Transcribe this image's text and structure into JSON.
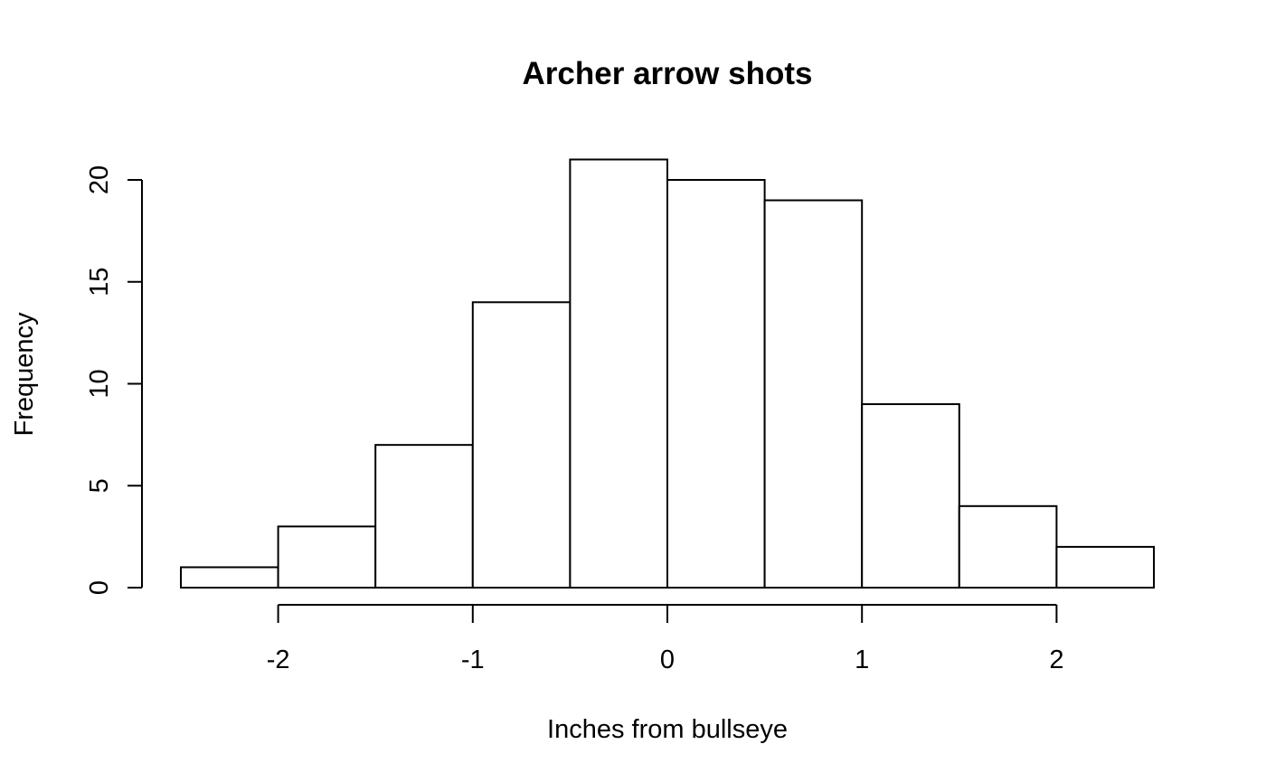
{
  "chart_data": {
    "type": "bar",
    "title": "Archer arrow shots",
    "xlabel": "Inches from bullseye",
    "ylabel": "Frequency",
    "bins": [
      {
        "start": -2.5,
        "end": -2.0,
        "count": 1
      },
      {
        "start": -2.0,
        "end": -1.5,
        "count": 3
      },
      {
        "start": -1.5,
        "end": -1.0,
        "count": 7
      },
      {
        "start": -1.0,
        "end": -0.5,
        "count": 14
      },
      {
        "start": -0.5,
        "end": 0.0,
        "count": 21
      },
      {
        "start": 0.0,
        "end": 0.5,
        "count": 20
      },
      {
        "start": 0.5,
        "end": 1.0,
        "count": 19
      },
      {
        "start": 1.0,
        "end": 1.5,
        "count": 9
      },
      {
        "start": 1.5,
        "end": 2.0,
        "count": 4
      },
      {
        "start": 2.0,
        "end": 2.5,
        "count": 2
      }
    ],
    "xlim": [
      -2.5,
      2.5
    ],
    "ylim": [
      0,
      21
    ],
    "x_ticks": [
      -2,
      -1,
      0,
      1,
      2
    ],
    "x_tick_labels": [
      "-2",
      "-1",
      "0",
      "1",
      "2"
    ],
    "y_ticks": [
      0,
      5,
      10,
      15,
      20
    ],
    "y_tick_labels": [
      "0",
      "5",
      "10",
      "15",
      "20"
    ],
    "grid": false,
    "legend": "none",
    "bar_fill": "#ffffff",
    "bar_stroke": "#000000"
  }
}
